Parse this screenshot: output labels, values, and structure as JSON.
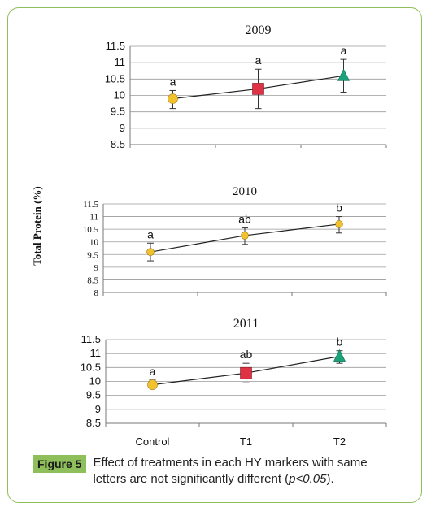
{
  "ylabel": "Total Protein (%)",
  "categories": [
    "Control",
    "T1",
    "T2"
  ],
  "colors": {
    "control": "#f2c12e",
    "t1": "#e03245",
    "t2": "#1aa37a",
    "border": "#8fbf5a",
    "line": "#222222"
  },
  "chart_data": [
    {
      "type": "line",
      "title": "2009",
      "ylim": [
        8.5,
        11.5
      ],
      "yticks": [
        "8.5",
        "9",
        "9.5",
        "10",
        "10.5",
        "11",
        "11.5"
      ],
      "values": [
        9.9,
        10.2,
        10.6
      ],
      "errors": [
        [
          9.6,
          10.15
        ],
        [
          9.6,
          10.8
        ],
        [
          10.1,
          11.1
        ]
      ],
      "markers": [
        "circle",
        "square",
        "triangle"
      ],
      "letters": [
        "a",
        "a",
        "a"
      ]
    },
    {
      "type": "line",
      "title": "2010",
      "ylim": [
        8,
        11.5
      ],
      "yticks": [
        "8",
        "8.5",
        "9",
        "9.5",
        "10",
        "10.5",
        "11",
        "11.5"
      ],
      "values": [
        9.6,
        10.25,
        10.7
      ],
      "errors": [
        [
          9.25,
          9.95
        ],
        [
          9.9,
          10.55
        ],
        [
          10.35,
          11.0
        ]
      ],
      "markers": [
        "circle",
        "circle",
        "circle"
      ],
      "letters": [
        "a",
        "ab",
        "b"
      ]
    },
    {
      "type": "line",
      "title": "2011",
      "ylim": [
        8.5,
        11.5
      ],
      "yticks": [
        "8.5",
        "9",
        "9.5",
        "10",
        "10.5",
        "11",
        "11.5"
      ],
      "values": [
        9.88,
        10.3,
        10.9
      ],
      "errors": [
        [
          9.75,
          10.05
        ],
        [
          9.95,
          10.65
        ],
        [
          10.65,
          11.1
        ]
      ],
      "markers": [
        "circle",
        "square",
        "triangle"
      ],
      "letters": [
        "a",
        "ab",
        "b"
      ]
    }
  ],
  "caption": {
    "label": "Figure 5",
    "text_before": "Effect of treatments in each HY markers with same letters are not significantly different (",
    "text_italic": "p<0.05",
    "text_after": ")."
  }
}
